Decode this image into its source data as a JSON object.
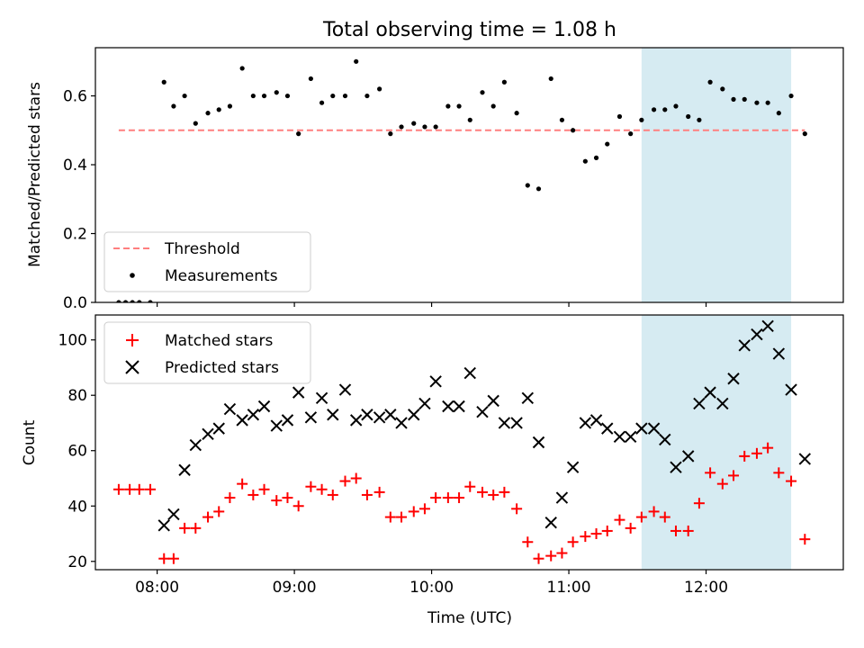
{
  "chart_data": [
    {
      "type": "scatter",
      "title": "Total observing time = 1.08 h",
      "xlabel": "",
      "ylabel": "Matched/Predicted stars",
      "x_unit": "hours (UTC)",
      "xlim": [
        7.55,
        13.0
      ],
      "ylim": [
        0.0,
        0.74
      ],
      "yticks": [
        0.0,
        0.2,
        0.4,
        0.6
      ],
      "ytick_labels": [
        "0.0",
        "0.2",
        "0.4",
        "0.6"
      ],
      "highlight_band": {
        "x0": 11.53,
        "x1": 12.62,
        "color": "#add8e6"
      },
      "threshold": {
        "name": "Threshold",
        "y": 0.5,
        "x0": 7.72,
        "x1": 12.72,
        "color": "#ff7f7f"
      },
      "series": [
        {
          "name": "Measurements",
          "color": "#000000",
          "x": [
            7.72,
            7.77,
            7.82,
            7.87,
            7.95,
            8.05,
            8.12,
            8.2,
            8.28,
            8.37,
            8.45,
            8.53,
            8.62,
            8.7,
            8.78,
            8.87,
            8.95,
            9.03,
            9.12,
            9.2,
            9.28,
            9.37,
            9.45,
            9.53,
            9.62,
            9.7,
            9.78,
            9.87,
            9.95,
            10.03,
            10.12,
            10.2,
            10.28,
            10.37,
            10.45,
            10.53,
            10.62,
            10.7,
            10.78,
            10.87,
            10.95,
            11.03,
            11.12,
            11.2,
            11.28,
            11.37,
            11.45,
            11.53,
            11.62,
            11.7,
            11.78,
            11.87,
            11.95,
            12.03,
            12.12,
            12.2,
            12.28,
            12.37,
            12.45,
            12.53,
            12.62,
            12.72
          ],
          "y": [
            0.0,
            0.0,
            0.0,
            0.0,
            0.0,
            0.64,
            0.57,
            0.6,
            0.52,
            0.55,
            0.56,
            0.57,
            0.68,
            0.6,
            0.6,
            0.61,
            0.6,
            0.49,
            0.65,
            0.58,
            0.6,
            0.6,
            0.7,
            0.6,
            0.62,
            0.49,
            0.51,
            0.52,
            0.51,
            0.51,
            0.57,
            0.57,
            0.53,
            0.61,
            0.57,
            0.64,
            0.55,
            0.34,
            0.33,
            0.65,
            0.53,
            0.5,
            0.41,
            0.42,
            0.46,
            0.54,
            0.49,
            0.53,
            0.56,
            0.56,
            0.57,
            0.54,
            0.53,
            0.64,
            0.62,
            0.59,
            0.59,
            0.58,
            0.58,
            0.55,
            0.6,
            0.49
          ]
        }
      ],
      "legend": {
        "position": "lower-left",
        "items": [
          "Threshold",
          "Measurements"
        ]
      }
    },
    {
      "type": "scatter",
      "title": "",
      "xlabel": "Time (UTC)",
      "ylabel": "Count",
      "x_unit": "hours (UTC)",
      "xlim": [
        7.55,
        13.0
      ],
      "ylim": [
        17,
        109
      ],
      "xticks": [
        8,
        9,
        10,
        11,
        12
      ],
      "xtick_labels": [
        "08:00",
        "09:00",
        "10:00",
        "11:00",
        "12:00"
      ],
      "yticks": [
        20,
        40,
        60,
        80,
        100
      ],
      "ytick_labels": [
        "20",
        "40",
        "60",
        "80",
        "100"
      ],
      "highlight_band": {
        "x0": 11.53,
        "x1": 12.62,
        "color": "#add8e6"
      },
      "series": [
        {
          "name": "Matched stars",
          "marker": "plus",
          "color": "#ff0000",
          "x": [
            7.72,
            7.8,
            7.87,
            7.95,
            8.05,
            8.12,
            8.2,
            8.28,
            8.37,
            8.45,
            8.53,
            8.62,
            8.7,
            8.78,
            8.87,
            8.95,
            9.03,
            9.12,
            9.2,
            9.28,
            9.37,
            9.45,
            9.53,
            9.62,
            9.7,
            9.78,
            9.87,
            9.95,
            10.03,
            10.12,
            10.2,
            10.28,
            10.37,
            10.45,
            10.53,
            10.62,
            10.7,
            10.78,
            10.87,
            10.95,
            11.03,
            11.12,
            11.2,
            11.28,
            11.37,
            11.45,
            11.53,
            11.62,
            11.7,
            11.78,
            11.87,
            11.95,
            12.03,
            12.12,
            12.2,
            12.28,
            12.37,
            12.45,
            12.53,
            12.62,
            12.72
          ],
          "y": [
            46,
            46,
            46,
            46,
            21,
            21,
            32,
            32,
            36,
            38,
            43,
            48,
            44,
            46,
            42,
            43,
            40,
            47,
            46,
            44,
            49,
            50,
            44,
            45,
            36,
            36,
            38,
            39,
            43,
            43,
            43,
            47,
            45,
            44,
            45,
            39,
            27,
            21,
            22,
            23,
            27,
            29,
            30,
            31,
            35,
            32,
            36,
            38,
            36,
            31,
            31,
            41,
            52,
            48,
            51,
            58,
            59,
            61,
            52,
            49,
            28
          ]
        },
        {
          "name": "Predicted stars",
          "marker": "x",
          "color": "#000000",
          "x": [
            8.05,
            8.12,
            8.2,
            8.28,
            8.37,
            8.45,
            8.53,
            8.62,
            8.7,
            8.78,
            8.87,
            8.95,
            9.03,
            9.12,
            9.2,
            9.28,
            9.37,
            9.45,
            9.53,
            9.62,
            9.7,
            9.78,
            9.87,
            9.95,
            10.03,
            10.12,
            10.2,
            10.28,
            10.37,
            10.45,
            10.53,
            10.62,
            10.7,
            10.78,
            10.87,
            10.95,
            11.03,
            11.12,
            11.2,
            11.28,
            11.37,
            11.45,
            11.53,
            11.62,
            11.7,
            11.78,
            11.87,
            11.95,
            12.03,
            12.12,
            12.2,
            12.28,
            12.37,
            12.45,
            12.53,
            12.62,
            12.72
          ],
          "y": [
            33,
            37,
            53,
            62,
            66,
            68,
            75,
            71,
            73,
            76,
            69,
            71,
            81,
            72,
            79,
            73,
            82,
            71,
            73,
            72,
            73,
            70,
            73,
            77,
            85,
            76,
            76,
            88,
            74,
            78,
            70,
            70,
            79,
            63,
            34,
            43,
            54,
            70,
            71,
            68,
            65,
            65,
            68,
            68,
            64,
            54,
            58,
            77,
            81,
            77,
            86,
            98,
            102,
            105,
            95,
            82,
            57
          ]
        }
      ],
      "legend": {
        "position": "upper-left",
        "items": [
          "Matched stars",
          "Predicted stars"
        ]
      }
    }
  ]
}
